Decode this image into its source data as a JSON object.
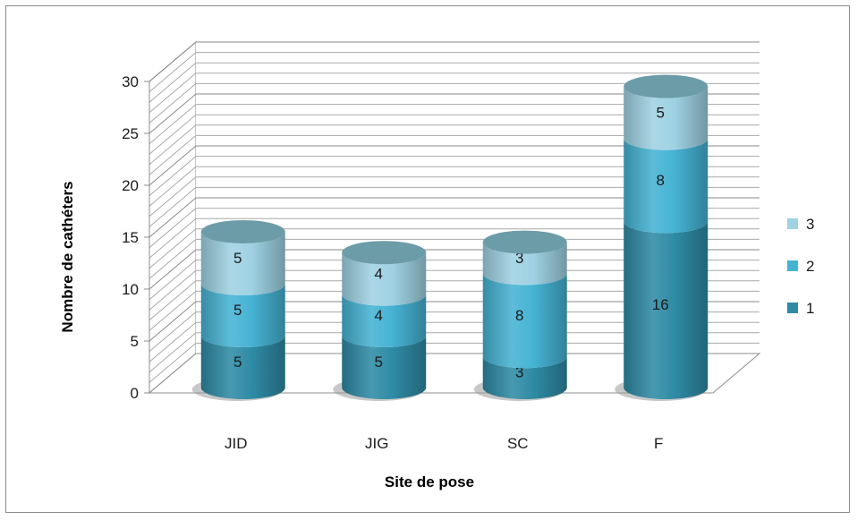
{
  "chart_data": {
    "type": "bar",
    "style": "3d-stacked-cylinder",
    "categories": [
      "JID",
      "JIG",
      "SC",
      "F"
    ],
    "series": [
      {
        "name": "1",
        "values": [
          5,
          5,
          3,
          16
        ],
        "color": "#2f8ba5"
      },
      {
        "name": "2",
        "values": [
          5,
          4,
          8,
          8
        ],
        "color": "#46b3d4"
      },
      {
        "name": "3",
        "values": [
          5,
          4,
          3,
          5
        ],
        "color": "#9fd2e3"
      }
    ],
    "xlabel": "Site de pose",
    "ylabel": "Nombre de cathéters",
    "ylim": [
      0,
      30
    ],
    "yticks": [
      0,
      5,
      10,
      15,
      20,
      25,
      30
    ],
    "minor_grid_step": 1,
    "grid": true,
    "legend_position": "right",
    "legend_order": [
      "3",
      "2",
      "1"
    ]
  }
}
